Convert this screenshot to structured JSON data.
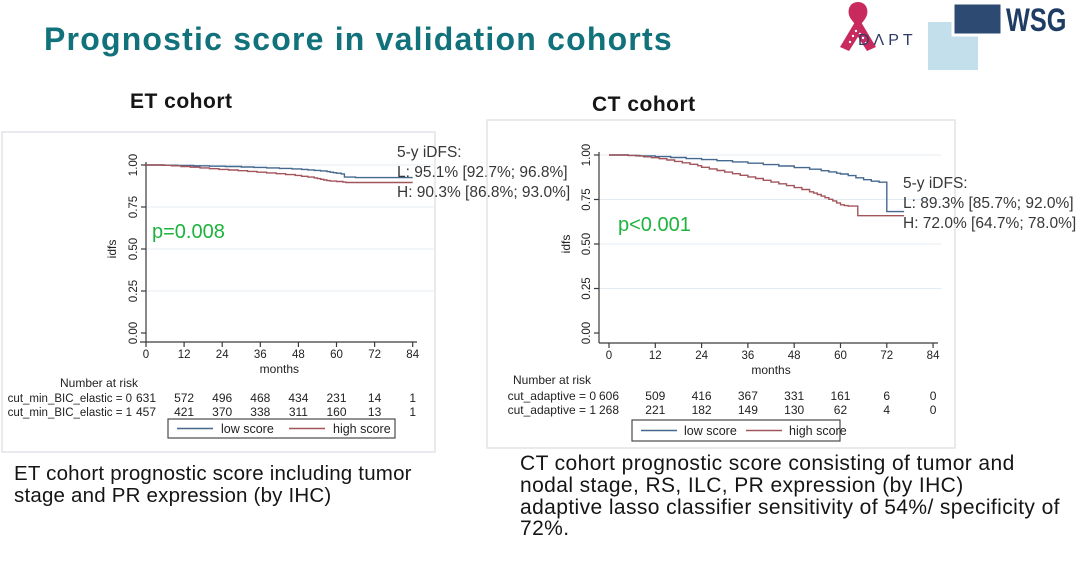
{
  "title": "Prognostic score in validation cohorts",
  "logos": {
    "adapt": {
      "text": "DΛPT",
      "ribbon_color": "#c92a5e",
      "text_color": "#2e3a64"
    },
    "wsg": {
      "text": "WSG",
      "dark_square": "#2d4a72",
      "light_square": "#c2dfeb",
      "text_color": "#1e3c64"
    }
  },
  "captions": {
    "et": "ET cohort prognostic score including tumor\nstage and PR expression (by IHC)",
    "ct": "CT cohort prognostic score consisting of tumor and\nnodal stage, RS, ILC, PR expression (by IHC)\nadaptive lasso classifier sensitivity of 54%/ specificity of\n72%."
  },
  "colors": {
    "title": "#11727c",
    "curve_low": "#45688e",
    "curve_high": "#a2555b",
    "pvalue_green": "#1db33e",
    "grid": "#e4ecf3",
    "panel_border": "#d8dde3",
    "axis": "#3a3a3a",
    "annotation_text": "#373737",
    "chart_text": "#222222"
  },
  "chart_data": [
    {
      "id": "et",
      "type": "line",
      "title": "ET cohort",
      "xlabel": "months",
      "ylabel": "idfs",
      "xlim": [
        0,
        84
      ],
      "ylim": [
        0,
        1
      ],
      "grid": true,
      "xticks": [
        0,
        12,
        24,
        36,
        48,
        60,
        72,
        84
      ],
      "yticks": [
        {
          "v": 0.0,
          "label": "0.00"
        },
        {
          "v": 0.25,
          "label": "0.25"
        },
        {
          "v": 0.5,
          "label": "0.50"
        },
        {
          "v": 0.75,
          "label": "0.75"
        },
        {
          "v": 1.0,
          "label": "1.00"
        }
      ],
      "pvalue": "p=0.008",
      "annotation": [
        "5-y iDFS:",
        "L: 95.1% [92.7%; 96.8%]",
        "H: 90.3% [86.8%; 93.0%]"
      ],
      "series": [
        {
          "name": "low score",
          "points": [
            [
              0,
              1
            ],
            [
              6,
              0.999
            ],
            [
              10,
              0.997
            ],
            [
              15,
              0.995
            ],
            [
              20,
              0.993
            ],
            [
              25,
              0.991
            ],
            [
              30,
              0.988
            ],
            [
              34,
              0.986
            ],
            [
              38,
              0.983
            ],
            [
              42,
              0.98
            ],
            [
              46,
              0.977
            ],
            [
              49,
              0.974
            ],
            [
              51,
              0.971
            ],
            [
              53,
              0.968
            ],
            [
              55,
              0.965
            ],
            [
              57,
              0.961
            ],
            [
              58,
              0.957
            ],
            [
              59,
              0.954
            ],
            [
              60,
              0.951
            ],
            [
              61.5,
              0.947
            ],
            [
              62.5,
              0.928
            ],
            [
              66,
              0.925
            ],
            [
              84,
              0.925
            ]
          ]
        },
        {
          "name": "high score",
          "points": [
            [
              0,
              1
            ],
            [
              5,
              0.998
            ],
            [
              8,
              0.995
            ],
            [
              11,
              0.991
            ],
            [
              14,
              0.987
            ],
            [
              17,
              0.983
            ],
            [
              20,
              0.978
            ],
            [
              23,
              0.974
            ],
            [
              26,
              0.97
            ],
            [
              29,
              0.966
            ],
            [
              32,
              0.962
            ],
            [
              35,
              0.957
            ],
            [
              38,
              0.953
            ],
            [
              41,
              0.948
            ],
            [
              44,
              0.943
            ],
            [
              47,
              0.938
            ],
            [
              49,
              0.933
            ],
            [
              51,
              0.928
            ],
            [
              53,
              0.923
            ],
            [
              54,
              0.919
            ],
            [
              55,
              0.915
            ],
            [
              56,
              0.911
            ],
            [
              57,
              0.907
            ],
            [
              58,
              0.904
            ],
            [
              60,
              0.902
            ],
            [
              62,
              0.898
            ],
            [
              63,
              0.896
            ],
            [
              84,
              0.896
            ]
          ]
        }
      ],
      "number_at_risk": {
        "header": "Number at risk",
        "rows": [
          {
            "label": "cut_min_BIC_elastic = 0",
            "values": [
              631,
              572,
              496,
              468,
              434,
              231,
              14,
              1
            ]
          },
          {
            "label": "cut_min_BIC_elastic = 1",
            "values": [
              457,
              421,
              370,
              338,
              311,
              160,
              13,
              1
            ]
          }
        ]
      },
      "legend": [
        "low score",
        "high score"
      ]
    },
    {
      "id": "ct",
      "type": "line",
      "title": "CT cohort",
      "xlabel": "months",
      "ylabel": "idfs",
      "xlim": [
        0,
        84
      ],
      "ylim": [
        0,
        1
      ],
      "grid": true,
      "xticks": [
        0,
        12,
        24,
        36,
        48,
        60,
        72,
        84
      ],
      "yticks": [
        {
          "v": 0.0,
          "label": "0.00"
        },
        {
          "v": 0.25,
          "label": "0.25"
        },
        {
          "v": 0.5,
          "label": "0.50"
        },
        {
          "v": 0.75,
          "label": "0.75"
        },
        {
          "v": 1.0,
          "label": "1.00"
        }
      ],
      "pvalue": "p<0.001",
      "annotation": [
        "5-y iDFS:",
        "L: 89.3% [85.7%; 92.0%]",
        "H: 72.0% [64.7%; 78.0%]"
      ],
      "series": [
        {
          "name": "low score",
          "points": [
            [
              0,
              1
            ],
            [
              5,
              0.998
            ],
            [
              8,
              0.995
            ],
            [
              12,
              0.991
            ],
            [
              16,
              0.986
            ],
            [
              20,
              0.98
            ],
            [
              24,
              0.974
            ],
            [
              28,
              0.968
            ],
            [
              32,
              0.961
            ],
            [
              36,
              0.954
            ],
            [
              40,
              0.946
            ],
            [
              44,
              0.938
            ],
            [
              48,
              0.929
            ],
            [
              52,
              0.92
            ],
            [
              55,
              0.912
            ],
            [
              57,
              0.905
            ],
            [
              59,
              0.898
            ],
            [
              60,
              0.893
            ],
            [
              62,
              0.884
            ],
            [
              64,
              0.872
            ],
            [
              66,
              0.861
            ],
            [
              68,
              0.853
            ],
            [
              70,
              0.847
            ],
            [
              72,
              0.682
            ],
            [
              76.5,
              0.682
            ]
          ]
        },
        {
          "name": "high score",
          "points": [
            [
              0,
              1
            ],
            [
              5,
              0.998
            ],
            [
              7,
              0.995
            ],
            [
              9,
              0.99
            ],
            [
              11,
              0.985
            ],
            [
              13,
              0.979
            ],
            [
              15,
              0.972
            ],
            [
              17,
              0.964
            ],
            [
              19,
              0.956
            ],
            [
              21,
              0.948
            ],
            [
              23,
              0.94
            ],
            [
              24,
              0.931
            ],
            [
              26,
              0.922
            ],
            [
              28,
              0.913
            ],
            [
              30,
              0.904
            ],
            [
              32,
              0.895
            ],
            [
              34,
              0.886
            ],
            [
              36,
              0.877
            ],
            [
              38,
              0.868
            ],
            [
              40,
              0.858
            ],
            [
              42,
              0.848
            ],
            [
              44,
              0.838
            ],
            [
              46,
              0.828
            ],
            [
              48,
              0.817
            ],
            [
              50,
              0.806
            ],
            [
              52,
              0.793
            ],
            [
              53,
              0.786
            ],
            [
              54,
              0.778
            ],
            [
              55,
              0.769
            ],
            [
              56,
              0.76
            ],
            [
              57,
              0.751
            ],
            [
              58,
              0.742
            ],
            [
              59,
              0.731
            ],
            [
              60,
              0.72
            ],
            [
              61,
              0.716
            ],
            [
              62,
              0.713
            ],
            [
              64.5,
              0.659
            ],
            [
              76.5,
              0.659
            ]
          ]
        }
      ],
      "number_at_risk": {
        "header": "Number at risk",
        "rows": [
          {
            "label": "cut_adaptive = 0",
            "values": [
              606,
              509,
              416,
              367,
              331,
              161,
              6,
              0
            ]
          },
          {
            "label": "cut_adaptive = 1",
            "values": [
              268,
              221,
              182,
              149,
              130,
              62,
              4,
              0
            ]
          }
        ]
      },
      "legend": [
        "low score",
        "high score"
      ]
    }
  ]
}
